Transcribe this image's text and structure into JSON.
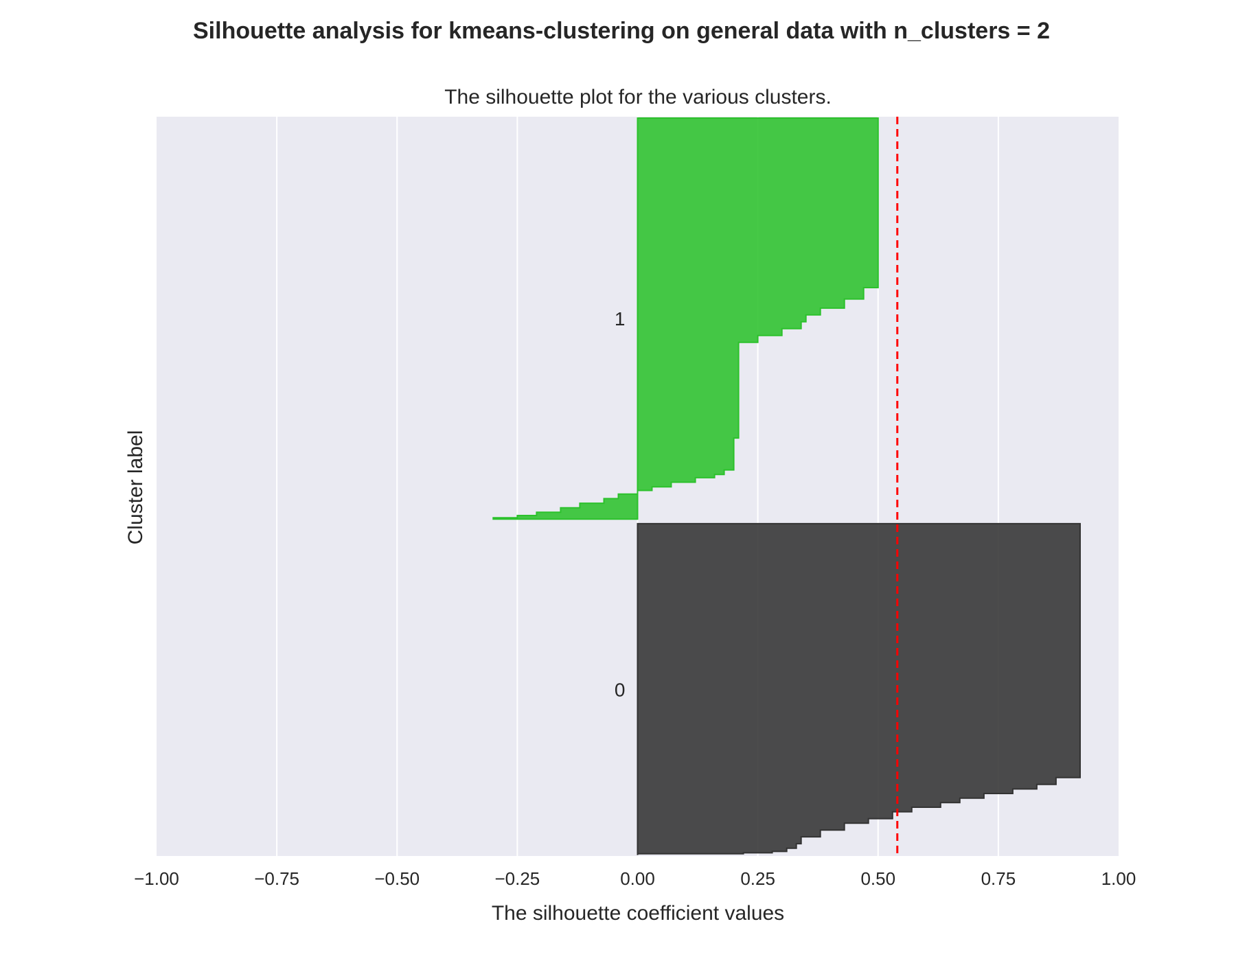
{
  "chart_data": {
    "type": "area",
    "suptitle": "Silhouette analysis for kmeans-clustering on general data with n_clusters = 2",
    "title": "The silhouette plot for the various clusters.",
    "xlabel": "The silhouette coefficient values",
    "ylabel": "Cluster label",
    "xlim": [
      -1.0,
      1.0
    ],
    "xticks": [
      "−1.00",
      "−0.75",
      "−0.50",
      "−0.25",
      "0.00",
      "0.25",
      "0.50",
      "0.75",
      "1.00"
    ],
    "xtick_values": [
      -1.0,
      -0.75,
      -0.5,
      -0.25,
      0.0,
      0.25,
      0.5,
      0.75,
      1.0
    ],
    "ylim": [
      -2,
      1620
    ],
    "grid": "vertical",
    "average_silhouette_score": 0.54,
    "avg_line_color": "#ff0000",
    "series": [
      {
        "name": "0",
        "label": "0",
        "color": "#333333",
        "band": [
          0,
          727
        ],
        "silhouette_values": [
          [
            0,
            0.0
          ],
          [
            3,
            0.22
          ],
          [
            5,
            0.28
          ],
          [
            8,
            0.31
          ],
          [
            15,
            0.33
          ],
          [
            25,
            0.34
          ],
          [
            40,
            0.38
          ],
          [
            55,
            0.43
          ],
          [
            70,
            0.48
          ],
          [
            80,
            0.53
          ],
          [
            95,
            0.57
          ],
          [
            105,
            0.63
          ],
          [
            115,
            0.67
          ],
          [
            125,
            0.72
          ],
          [
            135,
            0.78
          ],
          [
            145,
            0.83
          ],
          [
            155,
            0.87
          ],
          [
            170,
            0.92
          ],
          [
            727,
            0.92
          ]
        ]
      },
      {
        "name": "1",
        "label": "1",
        "color": "#2cc12c",
        "band": [
          737,
          1617
        ],
        "silhouette_values": [
          [
            737,
            -0.3
          ],
          [
            740,
            -0.25
          ],
          [
            745,
            -0.21
          ],
          [
            752,
            -0.16
          ],
          [
            762,
            -0.12
          ],
          [
            772,
            -0.07
          ],
          [
            782,
            -0.04
          ],
          [
            792,
            0.0
          ],
          [
            800,
            0.03
          ],
          [
            808,
            0.07
          ],
          [
            818,
            0.12
          ],
          [
            828,
            0.16
          ],
          [
            835,
            0.18
          ],
          [
            845,
            0.2
          ],
          [
            900,
            0.2
          ],
          [
            915,
            0.21
          ],
          [
            1112,
            0.21
          ],
          [
            1125,
            0.25
          ],
          [
            1140,
            0.3
          ],
          [
            1155,
            0.34
          ],
          [
            1170,
            0.35
          ],
          [
            1185,
            0.38
          ],
          [
            1200,
            0.43
          ],
          [
            1220,
            0.47
          ],
          [
            1245,
            0.5
          ],
          [
            1617,
            0.5
          ]
        ]
      }
    ]
  }
}
